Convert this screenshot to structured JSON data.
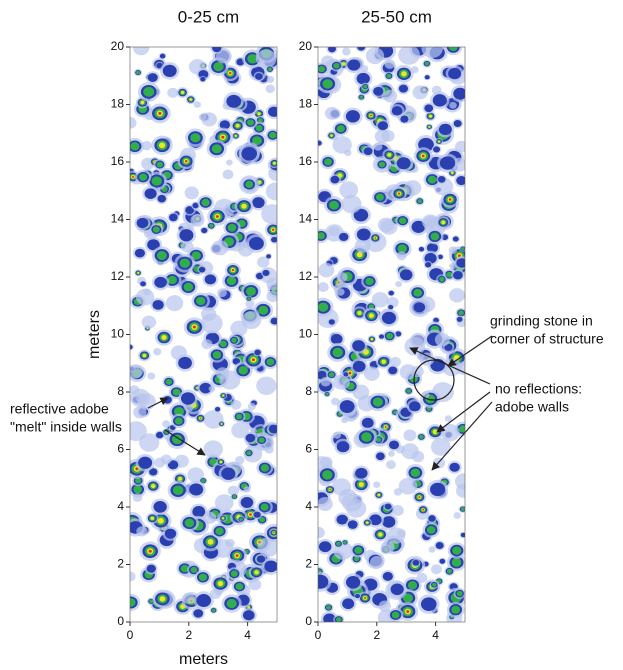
{
  "chart_data": [
    {
      "type": "heatmap",
      "title": "0-25 cm",
      "xlabel": "meters",
      "ylabel": "meters",
      "xlim": [
        0,
        5
      ],
      "xticks": [
        0,
        2,
        4
      ],
      "ylim": [
        0,
        20
      ],
      "yticks": [
        0,
        2,
        4,
        6,
        8,
        10,
        12,
        14,
        16,
        18,
        20
      ],
      "annotations": [
        {
          "lines": [
            "reflective adobe",
            "\"melt\" inside walls"
          ]
        }
      ]
    },
    {
      "type": "heatmap",
      "title": "25-50 cm",
      "xlim": [
        0,
        5
      ],
      "xticks": [
        0,
        2,
        4
      ],
      "ylim": [
        0,
        20
      ],
      "yticks": [
        0,
        2,
        4,
        6,
        8,
        10,
        12,
        14,
        16,
        18,
        20
      ],
      "annotations": [
        {
          "lines": [
            "grinding stone in",
            "corner of structure"
          ]
        },
        {
          "lines": [
            "no reflections:",
            "adobe walls"
          ]
        }
      ]
    }
  ]
}
